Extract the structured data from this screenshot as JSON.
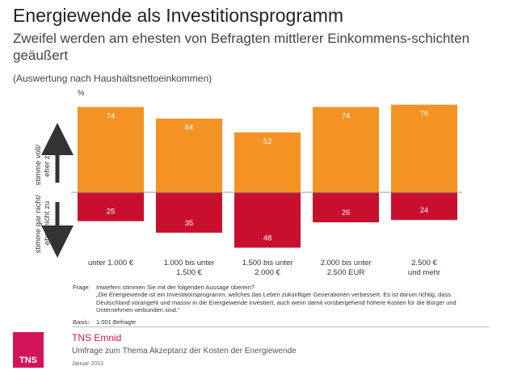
{
  "header": {
    "title": "Energiewende als Investitionsprogramm",
    "subtitle": "Zweifel werden am ehesten von Befragten mittlerer Einkommens-schichten geäußert",
    "note": "(Auswertung nach Haushaltsnettoeinkommen)"
  },
  "chart_data": {
    "type": "bar",
    "unit": "%",
    "categories": [
      [
        "unter 1.000 €"
      ],
      [
        "1.000 bis unter",
        "1.500 €"
      ],
      [
        "1.500 bis unter",
        "2.000 €"
      ],
      [
        "2.000 bis unter",
        "2.500 EUR"
      ],
      [
        "2.500 €",
        "und mehr"
      ]
    ],
    "series": [
      {
        "name": "stimme voll/ eher zu",
        "values": [
          74,
          64,
          52,
          74,
          76
        ],
        "color": "#f39323"
      },
      {
        "name": "stimme gar nicht/ eher nicht zu",
        "values": [
          25,
          35,
          48,
          26,
          24
        ],
        "color": "#c8102e"
      }
    ],
    "positive_label": [
      "stimme voll/",
      "eher zu"
    ],
    "negative_label": [
      "stimme gar nicht/",
      "eher nicht zu"
    ],
    "ylim": [
      -50,
      80
    ]
  },
  "footnote": {
    "frage_label": "Frage:",
    "frage_lines": [
      "Inwiefern stimmen Sie mit der folgenden Aussage überein?",
      "„Die Energiewende ist ein Investitionsprogramm, welches das Leben zukünftiger Generationen verbessert. Es ist darum richtig, dass",
      "Deutschland vorangeht und massiv in die Energiewende investiert, auch wenn damit vorübergehend höhere Kosten für die Bürger und",
      "Unternehmen verbunden sind.“"
    ],
    "basis_label": "Basis:",
    "basis_value": "1.001 Befragte"
  },
  "footer": {
    "logo_text": "TNS",
    "brand": "TNS Emnid",
    "survey": "Umfrage zum Thema Akzeptanz der Kosten der Energiewende",
    "date": "Januar 2013",
    "brand_color": "#d4145a"
  }
}
